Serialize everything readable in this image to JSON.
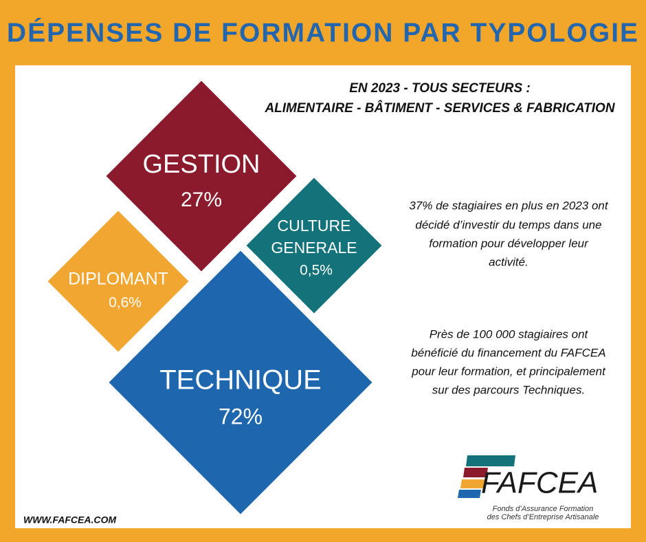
{
  "header": {
    "title": "DÉPENSES DE FORMATION PAR TYPOLOGIE"
  },
  "subtitle": {
    "line1": "EN 2023 - TOUS SECTEURS :",
    "line2": "ALIMENTAIRE - BÂTIMENT - SERVICES & FABRICATION"
  },
  "items": [
    {
      "label": "GESTION",
      "value": "27%"
    },
    {
      "label": "DIPLOMANT",
      "value": "0,6%"
    },
    {
      "label_lines": [
        "CULTURE",
        "GENERALE"
      ],
      "value": "0,5%"
    },
    {
      "label": "TECHNIQUE",
      "value": "72%"
    }
  ],
  "notes": [
    [
      "37% de stagiaires en plus en 2023 ont",
      "décidé d’investir du temps dans une",
      "formation pour développer leur",
      "activité."
    ],
    [
      "Près de 100 000 stagiaires ont",
      "bénéficié du financement du FAFCEA",
      "pour leur formation, et principalement",
      "sur des parcours Techniques."
    ]
  ],
  "logo": {
    "name": "FAFCEA",
    "line1": "Fonds d’Assurance Formation",
    "line2": "des Chefs d’Entreprise Artisanale"
  },
  "footer": {
    "website": "WWW.FAFCEA.COM"
  }
}
